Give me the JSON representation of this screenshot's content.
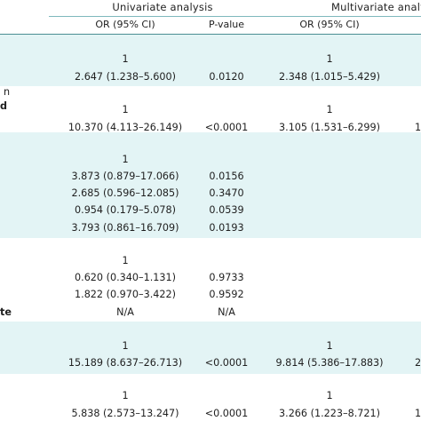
{
  "headers": {
    "univariate": "Univariate analysis",
    "multivariate": "Multivariate analy",
    "or_ci": "OR (95% CI)",
    "p_value": "P-value",
    "mv_or_ci": "OR (95% CI)"
  },
  "left_edge": {
    "n": "n",
    "d": "d",
    "te": "te"
  },
  "right_edge": {
    "r_10": "1",
    "r_2": "2",
    "r_1": "1"
  },
  "rows": [
    {
      "uni_or": "1",
      "uni_p": "",
      "mv_or": "1"
    },
    {
      "uni_or": "2.647 (1.238–5.600)",
      "uni_p": "0.0120",
      "mv_or": "2.348 (1.015–5.429)"
    },
    {
      "uni_or": "1",
      "uni_p": "",
      "mv_or": "1"
    },
    {
      "uni_or": "10.370 (4.113–26.149)",
      "uni_p": "<0.0001",
      "mv_or": "3.105 (1.531–6.299)"
    },
    {
      "uni_or": "1",
      "uni_p": "",
      "mv_or": ""
    },
    {
      "uni_or": "3.873 (0.879–17.066)",
      "uni_p": "0.0156",
      "mv_or": ""
    },
    {
      "uni_or": "2.685 (0.596–12.085)",
      "uni_p": "0.3470",
      "mv_or": ""
    },
    {
      "uni_or": "0.954 (0.179–5.078)",
      "uni_p": "0.0539",
      "mv_or": ""
    },
    {
      "uni_or": "3.793 (0.861–16.709)",
      "uni_p": "0.0193",
      "mv_or": ""
    },
    {
      "uni_or": "1",
      "uni_p": "",
      "mv_or": ""
    },
    {
      "uni_or": "0.620 (0.340–1.131)",
      "uni_p": "0.9733",
      "mv_or": ""
    },
    {
      "uni_or": "1.822 (0.970–3.422)",
      "uni_p": "0.9592",
      "mv_or": ""
    },
    {
      "uni_or": "N/A",
      "uni_p": "N/A",
      "mv_or": ""
    },
    {
      "uni_or": "1",
      "uni_p": "",
      "mv_or": "1"
    },
    {
      "uni_or": "15.189 (8.637–26.713)",
      "uni_p": "<0.0001",
      "mv_or": "9.814 (5.386–17.883)"
    },
    {
      "uni_or": "1",
      "uni_p": "",
      "mv_or": "1"
    },
    {
      "uni_or": "5.838 (2.573–13.247)",
      "uni_p": "<0.0001",
      "mv_or": "3.266 (1.223–8.721)"
    }
  ],
  "colors": {
    "band": "#e3f4f5",
    "rule": "#7fb9bd",
    "text": "#1f1f1f"
  }
}
